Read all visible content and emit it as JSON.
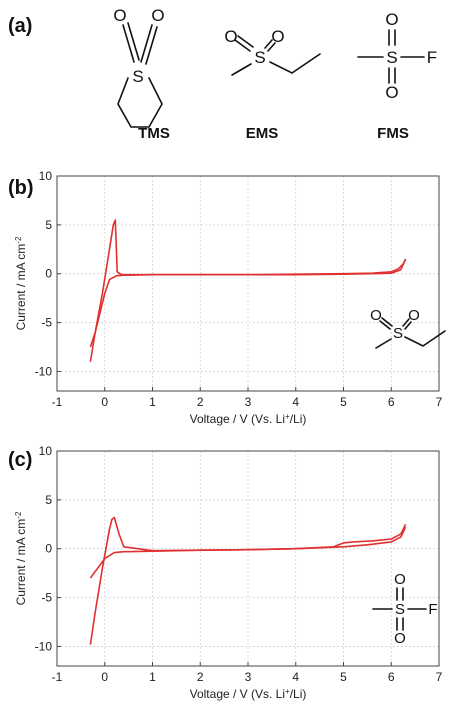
{
  "panels": {
    "a": "(a)",
    "b": "(b)",
    "c": "(c)"
  },
  "molecules": [
    {
      "name": "TMS"
    },
    {
      "name": "EMS"
    },
    {
      "name": "FMS"
    }
  ],
  "atoms": {
    "S": "S",
    "O": "O",
    "F": "F"
  },
  "colors": {
    "curve": "#e03030",
    "grid": "#cfcfcf",
    "axis": "#444444"
  },
  "chart_data": [
    {
      "type": "line",
      "panel": "(b)",
      "xlabel": "Voltage / V (Vs. Li+/Li)",
      "ylabel": "Current / mA cm-2",
      "xlim": [
        -1,
        7
      ],
      "ylim": [
        -12,
        10
      ],
      "xticks": [
        -1,
        0,
        1,
        2,
        3,
        4,
        5,
        6,
        7
      ],
      "yticks": [
        -10,
        -5,
        0,
        5,
        10
      ],
      "grid": true,
      "series": [
        {
          "x": [
            -0.3,
            -0.2,
            -0.05,
            0.1,
            0.18,
            0.22,
            0.26,
            0.35,
            1.0,
            2.0,
            3.0,
            4.0,
            5.0,
            5.6,
            6.0,
            6.15,
            6.25,
            6.3
          ],
          "y": [
            -9.0,
            -6.0,
            -2.0,
            2.5,
            5.0,
            5.5,
            0.2,
            -0.1,
            -0.1,
            -0.1,
            -0.1,
            -0.05,
            0.0,
            0.05,
            0.2,
            0.5,
            1.0,
            1.5
          ]
        },
        {
          "x": [
            6.3,
            6.2,
            6.0,
            5.0,
            4.0,
            3.0,
            2.0,
            1.0,
            0.4,
            0.25,
            0.1,
            0.0,
            -0.1,
            -0.2,
            -0.3
          ],
          "y": [
            1.5,
            0.4,
            0.05,
            -0.05,
            -0.1,
            -0.1,
            -0.1,
            -0.1,
            -0.15,
            -0.2,
            -0.6,
            -2.0,
            -4.0,
            -6.0,
            -7.5
          ]
        }
      ]
    },
    {
      "type": "line",
      "panel": "(c)",
      "xlabel": "Voltage / V (Vs. Li+/Li)",
      "ylabel": "Current / mA cm-2",
      "xlim": [
        -1,
        7
      ],
      "ylim": [
        -12,
        10
      ],
      "xticks": [
        -1,
        0,
        1,
        2,
        3,
        4,
        5,
        6,
        7
      ],
      "yticks": [
        -10,
        -5,
        0,
        5,
        10
      ],
      "grid": true,
      "series": [
        {
          "x": [
            -0.3,
            -0.2,
            -0.05,
            0.1,
            0.15,
            0.2,
            0.3,
            0.4,
            1.0,
            2.0,
            3.0,
            4.0,
            4.8,
            5.0,
            5.2,
            5.6,
            6.0,
            6.2,
            6.3
          ],
          "y": [
            -9.8,
            -6.5,
            -2.0,
            2.0,
            3.0,
            3.2,
            1.5,
            0.2,
            -0.2,
            -0.15,
            -0.1,
            0.0,
            0.2,
            0.6,
            0.7,
            0.8,
            1.0,
            1.5,
            2.5
          ]
        },
        {
          "x": [
            6.3,
            6.2,
            6.0,
            5.5,
            5.0,
            4.0,
            3.0,
            2.0,
            1.0,
            0.4,
            0.2,
            0.0,
            -0.15,
            -0.3
          ],
          "y": [
            2.2,
            1.2,
            0.7,
            0.4,
            0.2,
            0.0,
            -0.1,
            -0.15,
            -0.25,
            -0.3,
            -0.4,
            -1.0,
            -2.0,
            -3.0
          ]
        }
      ]
    }
  ]
}
